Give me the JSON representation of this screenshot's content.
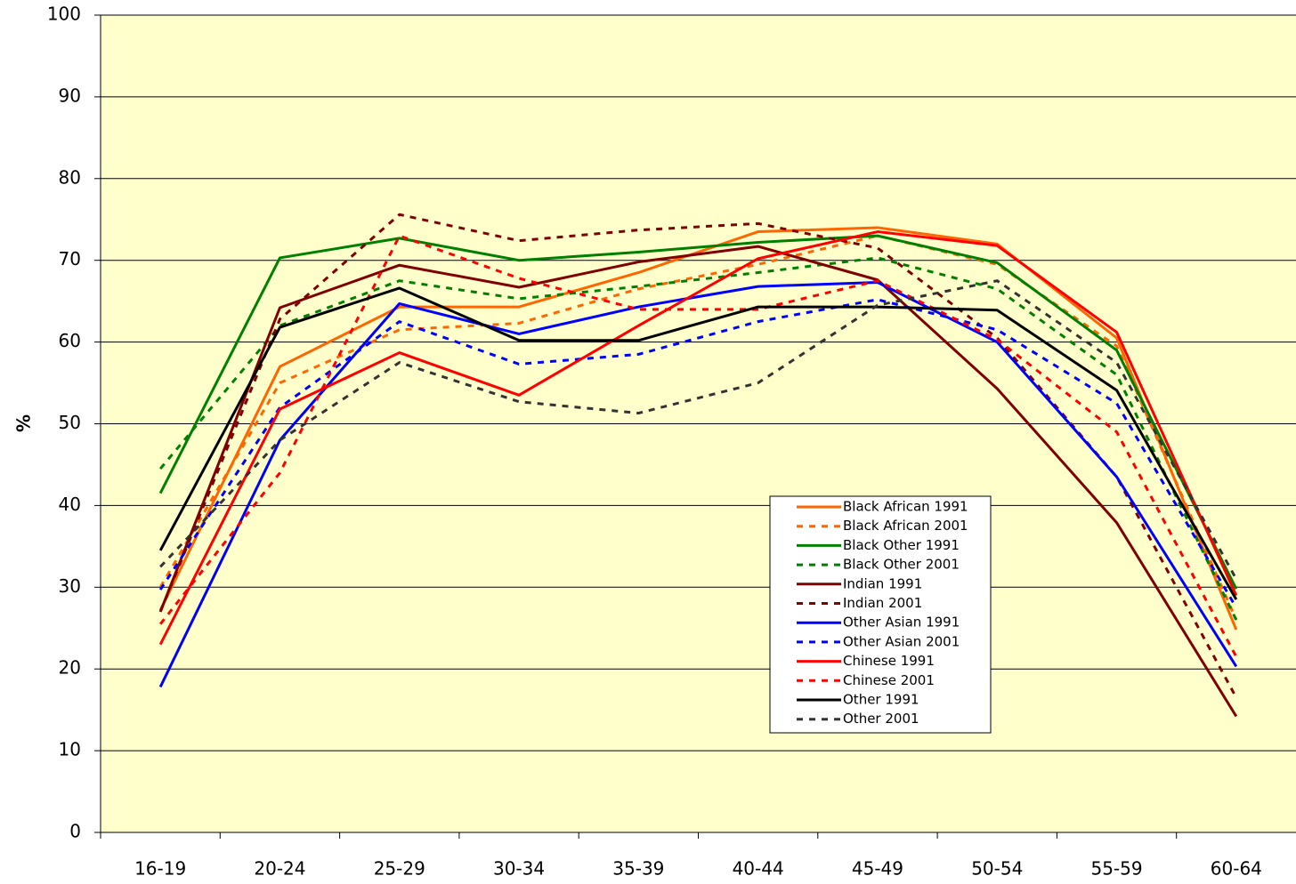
{
  "chart_data": {
    "type": "line",
    "y_label": "%",
    "categories": [
      "16-19",
      "20-24",
      "25-29",
      "30-34",
      "35-39",
      "40-44",
      "45-49",
      "50-54",
      "55-59",
      "60-64"
    ],
    "ylim": [
      0,
      100
    ],
    "yticks": [
      0,
      10,
      20,
      30,
      40,
      50,
      60,
      70,
      80,
      90,
      100
    ],
    "grid": true,
    "background": "#ffffcc",
    "legend": "lower-right",
    "series": [
      {
        "name": "Black African 1991",
        "color": "#ff6600",
        "dashed": false,
        "values": [
          27.2,
          57,
          64.3,
          64.3,
          68.5,
          73.5,
          74,
          72,
          60.5,
          24.8
        ]
      },
      {
        "name": "Black African 2001",
        "color": "#ff6600",
        "dashed": true,
        "values": [
          30,
          55,
          61.5,
          62.3,
          66.5,
          69.5,
          73,
          69.5,
          59.5,
          26
        ]
      },
      {
        "name": "Black Other 1991",
        "color": "#008000",
        "dashed": false,
        "values": [
          41.5,
          70.3,
          72.7,
          70,
          71,
          72.2,
          73,
          69.7,
          59,
          29.8
        ]
      },
      {
        "name": "Black Other 2001",
        "color": "#008000",
        "dashed": true,
        "values": [
          44.5,
          62,
          67.5,
          65.3,
          66.8,
          68.5,
          70.3,
          66.5,
          56,
          26
        ]
      },
      {
        "name": "Indian 1991",
        "color": "#800000",
        "dashed": false,
        "values": [
          27,
          64.2,
          69.4,
          66.7,
          69.8,
          71.7,
          67.6,
          54.3,
          37.9,
          14.2
        ]
      },
      {
        "name": "Indian 2001",
        "color": "#800000",
        "dashed": true,
        "values": [
          27,
          62.8,
          75.6,
          72.4,
          73.7,
          74.5,
          71.5,
          60.5,
          43.5,
          16.5
        ]
      },
      {
        "name": "Other Asian 1991",
        "color": "#0000ff",
        "dashed": false,
        "values": [
          17.8,
          48,
          64.7,
          61,
          64.3,
          66.8,
          67.3,
          60,
          43.5,
          20.3
        ]
      },
      {
        "name": "Other Asian 2001",
        "color": "#0000ff",
        "dashed": true,
        "values": [
          29.7,
          52,
          62.5,
          57.3,
          58.5,
          62.5,
          65.2,
          61.5,
          52.5,
          27.5
        ]
      },
      {
        "name": "Chinese 1991",
        "color": "#ff0000",
        "dashed": false,
        "values": [
          23,
          51.8,
          58.7,
          53.5,
          62,
          70.2,
          73.5,
          71.8,
          61.2,
          29
        ]
      },
      {
        "name": "Chinese 2001",
        "color": "#ff0000",
        "dashed": true,
        "values": [
          25.5,
          44,
          73,
          67.8,
          64,
          64,
          67.5,
          60.3,
          49,
          21.5
        ]
      },
      {
        "name": "Other 1991",
        "color": "#000000",
        "dashed": false,
        "values": [
          34.5,
          61.8,
          66.6,
          60.2,
          60.2,
          64.3,
          64.3,
          63.9,
          54.1,
          28.5
        ]
      },
      {
        "name": "Other 2001",
        "color": "#333333",
        "dashed": true,
        "values": [
          32.5,
          48,
          57.5,
          52.7,
          51.3,
          55,
          64.5,
          67.5,
          57.5,
          31
        ]
      }
    ]
  }
}
